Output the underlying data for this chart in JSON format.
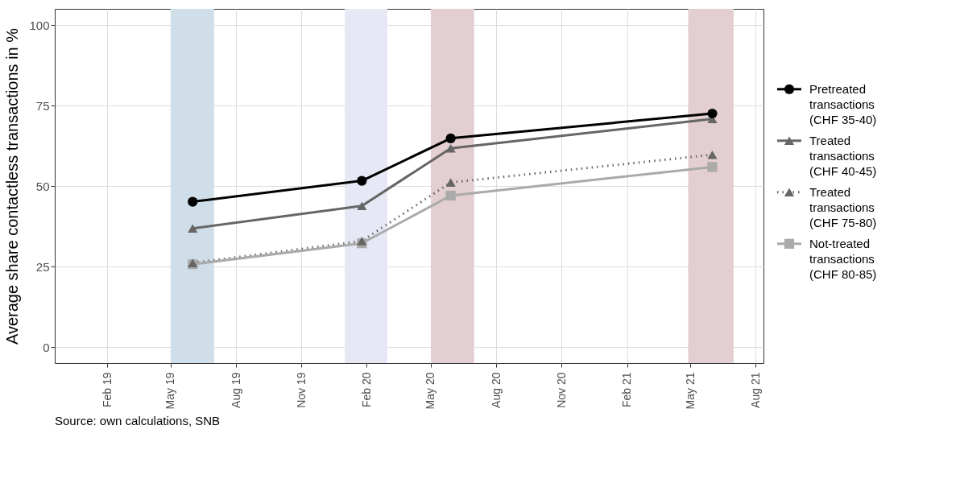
{
  "chart_data": {
    "type": "line",
    "ylabel": "Average share contactless transactions in %",
    "x": [
      "2019-06-01",
      "2020-01-25",
      "2020-05-29",
      "2021-06-01"
    ],
    "series": [
      {
        "name": "Pretreated transactions (CHF 35-40)",
        "color": "#000000",
        "marker": "circle",
        "line_style": "solid",
        "values": [
          45.1,
          51.6,
          64.8,
          72.5
        ]
      },
      {
        "name": "Treated transactions (CHF 40-45)",
        "color": "#666666",
        "marker": "triangle",
        "line_style": "solid",
        "values": [
          36.8,
          43.8,
          61.7,
          70.8
        ]
      },
      {
        "name": "Treated transactions (CHF 75-80)",
        "color": "#666666",
        "marker": "triangle",
        "line_style": "dotted",
        "values": [
          26.1,
          32.9,
          51.1,
          59.7
        ]
      },
      {
        "name": "Not-treated transactions (CHF 80-85)",
        "color": "#aaaaaa",
        "marker": "square",
        "line_style": "solid",
        "values": [
          25.7,
          32.2,
          47.0,
          55.9
        ]
      }
    ],
    "bands": [
      {
        "axis": "x",
        "from": "2019-05-01",
        "to": "2019-07-01",
        "color": "#cfdee8"
      },
      {
        "axis": "x",
        "from": "2020-01-01",
        "to": "2020-03-01",
        "color": "#e6e9f5"
      },
      {
        "axis": "x",
        "from": "2020-05-01",
        "to": "2020-07-01",
        "color": "#e3cfd2"
      },
      {
        "axis": "x",
        "from": "2021-04-28",
        "to": "2021-07-01",
        "color": "#e3cfd2"
      }
    ],
    "xlim": [
      "2018-11-19",
      "2021-08-12"
    ],
    "xticks": [
      {
        "value": "2019-02-01",
        "label": "Feb 19"
      },
      {
        "value": "2019-05-01",
        "label": "May 19"
      },
      {
        "value": "2019-08-01",
        "label": "Aug 19"
      },
      {
        "value": "2019-11-01",
        "label": "Nov 19"
      },
      {
        "value": "2020-02-01",
        "label": "Feb 20"
      },
      {
        "value": "2020-05-01",
        "label": "May 20"
      },
      {
        "value": "2020-08-01",
        "label": "Aug 20"
      },
      {
        "value": "2020-11-01",
        "label": "Nov 20"
      },
      {
        "value": "2021-02-01",
        "label": "Feb 21"
      },
      {
        "value": "2021-05-01",
        "label": "May 21"
      },
      {
        "value": "2021-08-01",
        "label": "Aug 21"
      }
    ],
    "ylim": [
      -5,
      105
    ],
    "yticks": [
      0,
      25,
      50,
      75,
      100
    ],
    "grid": true,
    "legend": "right",
    "annotations": [
      "Source: own calculations, SNB"
    ]
  }
}
